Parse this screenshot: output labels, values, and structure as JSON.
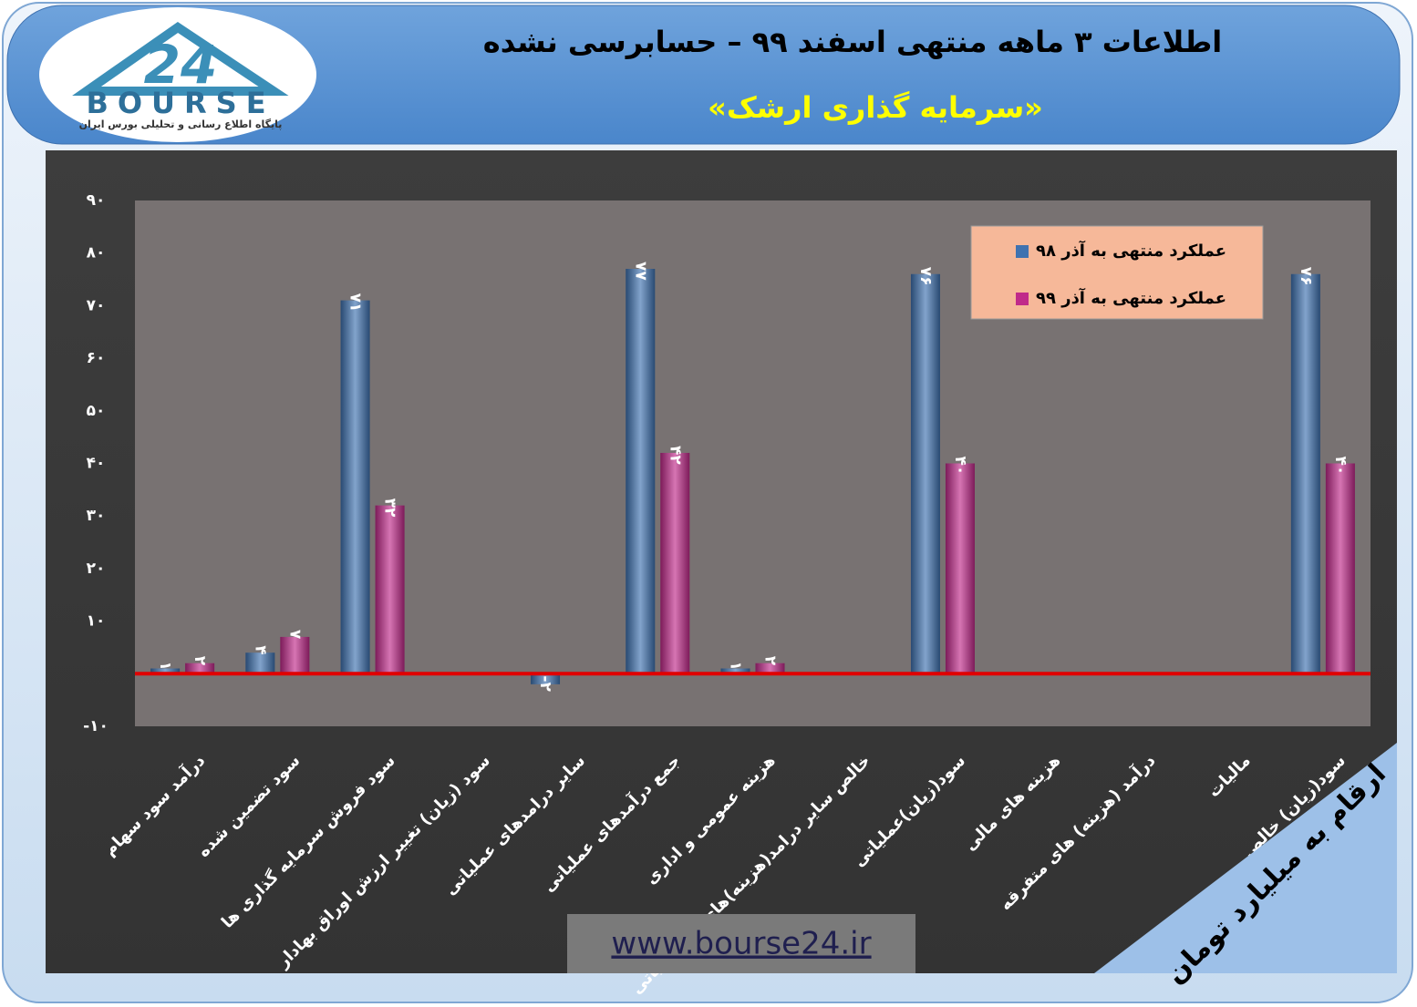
{
  "logo": {
    "number": "24",
    "name": "BOURSE",
    "tagline": "پایگاه اطلاع رسانی و تحلیلی بورس ایران"
  },
  "chart_data": {
    "type": "bar",
    "title": "اطلاعات ۳ ماهه منتهی اسفند ۹۹ – حسابرسی نشده",
    "subtitle": "«سرمایه گذاری ارشک»",
    "note": "ارقام به میلیارد تومان",
    "source": "www.bourse24.ir",
    "categories": [
      "درآمد سود سهام",
      "سود تضمین شده",
      "سود فروش سرمایه گذاری ها",
      "سود (زیان) تغییر ارزش اوراق بهادار",
      "سایر درامدهای عملیاتی",
      "جمع درآمدهای عملیاتی",
      "هزینه عمومی و اداری",
      "خالص سایر درامد(هزینه)های غیرعملیاتی",
      "سود(زیان)عملیاتی",
      "هزینه های مالی",
      "درآمد (هزینه) های متفرقه",
      "مالیات",
      "سود(زیان) خالص"
    ],
    "series": [
      {
        "name": "عملکرد منتهی به آذر ۹۸",
        "color": "#3f72b0",
        "values": [
          1,
          4,
          71,
          null,
          -2,
          77,
          1,
          null,
          76,
          null,
          null,
          null,
          76
        ],
        "value_labels": [
          "۱",
          "۴",
          "۷۱",
          null,
          "-۲",
          "۷۷",
          "۱",
          null,
          "۷۶",
          null,
          null,
          null,
          "۷۶"
        ]
      },
      {
        "name": "عملکرد منتهی به آذر ۹۹",
        "color": "#c02a8a",
        "values": [
          2,
          7,
          32,
          null,
          null,
          42,
          2,
          null,
          40,
          null,
          null,
          null,
          40
        ],
        "value_labels": [
          "۲",
          "۷",
          "۳۲",
          null,
          null,
          "۴۲",
          "۲",
          null,
          "۴۰",
          null,
          null,
          null,
          "۴۰"
        ]
      }
    ],
    "ylim": [
      -10,
      90
    ],
    "yticks": [
      {
        "value": -10,
        "label": "-۱۰"
      },
      {
        "value": 10,
        "label": "۱۰"
      },
      {
        "value": 20,
        "label": "۲۰"
      },
      {
        "value": 30,
        "label": "۳۰"
      },
      {
        "value": 40,
        "label": "۴۰"
      },
      {
        "value": 50,
        "label": "۵۰"
      },
      {
        "value": 60,
        "label": "۶۰"
      },
      {
        "value": 70,
        "label": "۷۰"
      },
      {
        "value": 80,
        "label": "۸۰"
      },
      {
        "value": 90,
        "label": "۹۰"
      }
    ],
    "grid": false,
    "zero_line_color": "#e00000",
    "legend": "top-right"
  }
}
